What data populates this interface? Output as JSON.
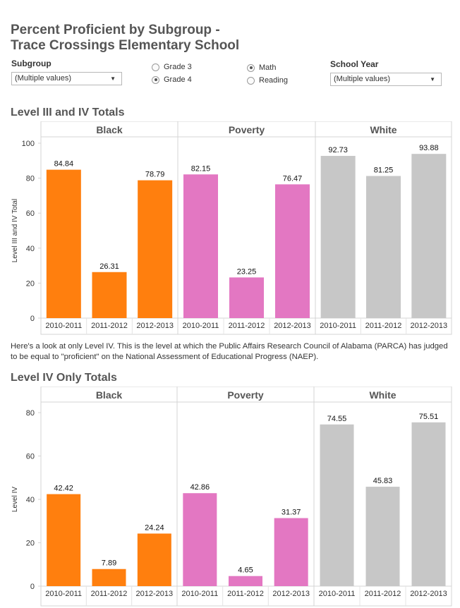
{
  "title_line1": "Percent Proficient by Subgroup -",
  "title_line2": "Trace Crossings Elementary School",
  "filters": {
    "subgroup_label": "Subgroup",
    "subgroup_value": "(Multiple values)",
    "grade_options": [
      {
        "label": "Grade 3",
        "selected": false
      },
      {
        "label": "Grade 4",
        "selected": true
      }
    ],
    "subject_options": [
      {
        "label": "Math",
        "selected": true
      },
      {
        "label": "Reading",
        "selected": false
      }
    ],
    "school_year_label": "School Year",
    "school_year_value": "(Multiple values)"
  },
  "note": "Here's a look at only Level IV. This is the level at which the Public Affairs Research Council of Alabama (PARCA) has judged to be equal to \"proficient\" on the National Assessment of Educational Progress (NAEP).",
  "colors": {
    "Black": "#ff7f0e",
    "Poverty": "#e377c2",
    "White": "#c7c7c7"
  },
  "chart_data": [
    {
      "type": "bar",
      "title": "Level III and IV Totals",
      "ylabel": "Level III and IV Total",
      "ylim": [
        0,
        100
      ],
      "yticks": [
        0,
        20,
        40,
        60,
        80,
        100
      ],
      "panels": [
        "Black",
        "Poverty",
        "White"
      ],
      "categories": [
        "2010-2011",
        "2011-2012",
        "2012-2013"
      ],
      "series": [
        {
          "name": "Black",
          "values": [
            84.84,
            26.31,
            78.79
          ]
        },
        {
          "name": "Poverty",
          "values": [
            82.15,
            23.25,
            76.47
          ]
        },
        {
          "name": "White",
          "values": [
            92.73,
            81.25,
            93.88
          ]
        }
      ]
    },
    {
      "type": "bar",
      "title": "Level IV Only Totals",
      "ylabel": "Level IV",
      "ylim": [
        0,
        80
      ],
      "yticks": [
        0,
        20,
        40,
        60,
        80
      ],
      "panels": [
        "Black",
        "Poverty",
        "White"
      ],
      "categories": [
        "2010-2011",
        "2011-2012",
        "2012-2013"
      ],
      "series": [
        {
          "name": "Black",
          "values": [
            42.42,
            7.89,
            24.24
          ]
        },
        {
          "name": "Poverty",
          "values": [
            42.86,
            4.65,
            31.37
          ]
        },
        {
          "name": "White",
          "values": [
            74.55,
            45.83,
            75.51
          ]
        }
      ]
    }
  ]
}
